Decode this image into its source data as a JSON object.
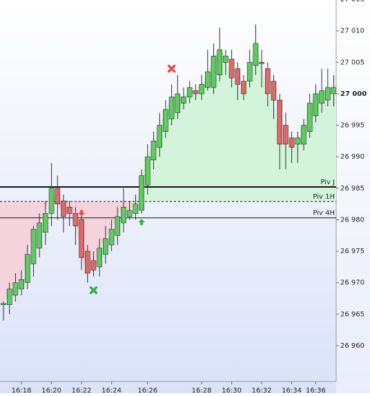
{
  "chart_data": {
    "type": "candlestick",
    "categories": [
      null,
      null,
      null,
      "16:18",
      null,
      null,
      null,
      null,
      "16:20",
      null,
      null,
      null,
      null,
      "16:22",
      null,
      null,
      null,
      null,
      "16:24",
      null,
      null,
      null,
      null,
      null,
      "16:26",
      null,
      null,
      null,
      null,
      null,
      null,
      null,
      null,
      "16:28",
      null,
      null,
      null,
      null,
      "16:30",
      null,
      null,
      null,
      null,
      "16:32",
      null,
      null,
      null,
      null,
      "16:34",
      null,
      null,
      null,
      "16:36",
      null,
      null,
      null
    ],
    "open": [
      26966.5,
      26966.5,
      26968,
      26969,
      26970,
      26973,
      26975.5,
      26978,
      26981,
      26985,
      26983,
      26982,
      26981,
      26980,
      26975,
      26973.5,
      26972.5,
      26974.5,
      26976,
      26977.5,
      26979.5,
      26980.5,
      26981,
      26981.5,
      26985.5,
      26989.5,
      26991.5,
      26994,
      26996,
      26997,
      26998.5,
      26999.5,
      27000.5,
      27000,
      27001,
      27001,
      27003,
      27005,
      27005.5,
      27004,
      27002,
      27002,
      27004.5,
      27005,
      27004,
      27002,
      26999,
      26995,
      26993,
      26992,
      26992,
      26994,
      26996.5,
      26998.5,
      26999,
      27000
    ],
    "high": [
      26967,
      26970,
      26971.5,
      26972,
      26976,
      26979,
      26981,
      26983,
      26989,
      26987,
      26984,
      26983,
      26982,
      26981,
      26976,
      26975,
      26977,
      26979,
      26980,
      26982,
      26985,
      26983,
      26984,
      26988,
      26992,
      26994,
      26997,
      26999,
      27001.5,
      27003,
      27001,
      27002,
      27001.5,
      27003,
      27007,
      27008,
      27010.5,
      27007,
      27007,
      27005,
      27003,
      27007,
      27011,
      27007,
      27005,
      27003,
      27000,
      26997,
      26994,
      26994,
      26996,
      27000,
      27001.5,
      27004,
      27004,
      27003
    ],
    "low": [
      26964,
      26965,
      26967,
      26968,
      26969,
      26971,
      26974,
      26976,
      26979,
      26980,
      26978,
      26979,
      26976,
      26972,
      26970,
      26971,
      26971,
      26973,
      26975,
      26976,
      26978,
      26980,
      26980,
      26981,
      26984,
      26988,
      26990,
      26993,
      26995,
      26996,
      26997.5,
      26998.5,
      26999,
      26999,
      27000.5,
      27000,
      27002,
      27003,
      27001,
      26999,
      26999,
      27001,
      27003,
      27001,
      26998,
      26996,
      26988,
      26988,
      26989,
      26989,
      26991,
      26993,
      26995.5,
      26997,
      26998,
      26998
    ],
    "close": [
      26966.7,
      26969,
      26970,
      26970.5,
      26974.5,
      26978.5,
      26979.5,
      26981,
      26985,
      26982.5,
      26980.5,
      26981,
      26979,
      26974,
      26971.5,
      26972,
      26975.5,
      26977,
      26978.5,
      26980.5,
      26982,
      26981.5,
      26982.5,
      26987,
      26990,
      26992.5,
      26995,
      26997.5,
      26999.5,
      27000,
      26999.5,
      27001,
      27000,
      27001.5,
      27003.5,
      27006,
      27007,
      27006,
      27002.5,
      27001.5,
      27000,
      27005,
      27008,
      27004.8,
      27000,
      26999,
      26992,
      26992,
      26991.5,
      26993,
      26995,
      26998.5,
      27000,
      27000.5,
      27001,
      27001
    ],
    "up_color": "#5dcc5d",
    "down_color": "#e06868",
    "outline_color": "#2a2a2a",
    "ylim": [
      26954.3,
      27014.9
    ],
    "yticks": [
      {
        "value": 26960,
        "label": "26 960"
      },
      {
        "value": 26965,
        "label": "26 965"
      },
      {
        "value": 26970,
        "label": "26 970"
      },
      {
        "value": 26975,
        "label": "26 975"
      },
      {
        "value": 26980,
        "label": "26 980"
      },
      {
        "value": 26985,
        "label": "26 985"
      },
      {
        "value": 26990,
        "label": "26 990"
      },
      {
        "value": 26995,
        "label": "26 995"
      },
      {
        "value": 27000,
        "label": "27 000",
        "bold": true
      },
      {
        "value": 27005,
        "label": "27 005"
      },
      {
        "value": 27010,
        "label": "27 010"
      },
      {
        "value": 27015,
        "label": "27 015"
      }
    ],
    "levels": [
      {
        "label": "Piv J",
        "value": 26985.2,
        "style": "solid",
        "width": 2
      },
      {
        "label": "Piv 1H",
        "value": 26982.9,
        "style": "dashed",
        "width": 1,
        "fill_base": true
      },
      {
        "label": "Piv 4H",
        "value": 26980.3,
        "style": "solid",
        "width": 1
      }
    ],
    "fill_above": "#d3f4da",
    "fill_below": "#f4d3dc",
    "markers": [
      {
        "shape": "cross",
        "index": 28,
        "value": 27004,
        "color": "#e84c4c"
      },
      {
        "shape": "cross",
        "index": 15,
        "value": 26968.8,
        "color": "#33b044"
      },
      {
        "shape": "arrow-down",
        "index": 13,
        "value": 26980.9,
        "color": "#e84c4c"
      },
      {
        "shape": "arrow-up",
        "index": 23,
        "value": 26979.8,
        "color": "#33b044"
      }
    ]
  }
}
